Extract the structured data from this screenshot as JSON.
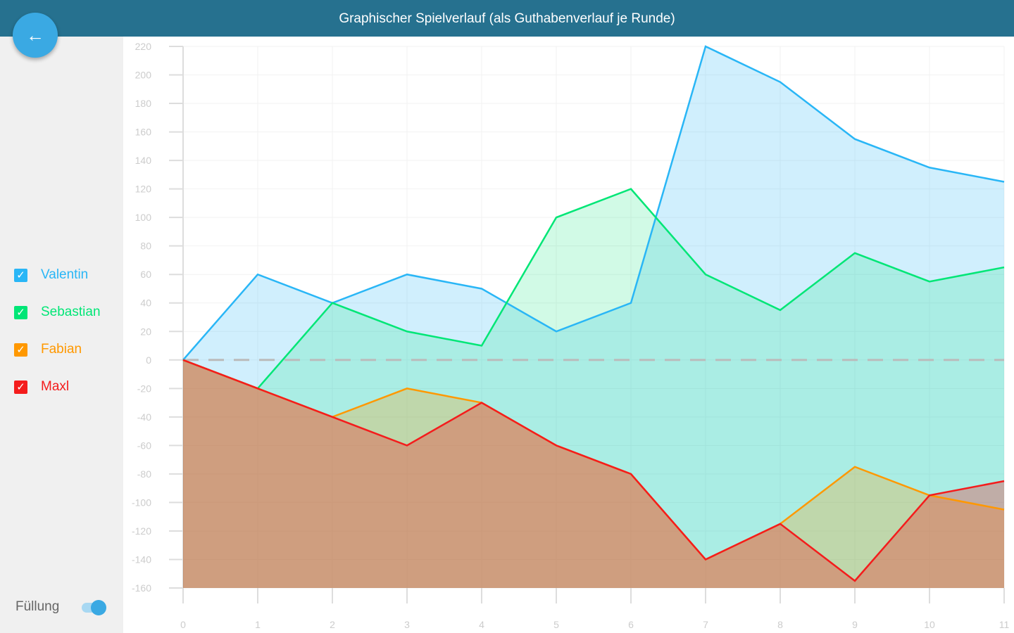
{
  "header": {
    "title": "Graphischer Spielverlauf (als Guthabenverlauf je Runde)",
    "back_icon": "arrow-left-icon"
  },
  "sidebar": {
    "fill_label": "Füllung",
    "fill_enabled": true
  },
  "chart_data": {
    "type": "area",
    "title": "Graphischer Spielverlauf (als Guthabenverlauf je Runde)",
    "x": [
      0,
      1,
      2,
      3,
      4,
      5,
      6,
      7,
      8,
      9,
      10,
      11
    ],
    "xlim": [
      0,
      11
    ],
    "ylim": [
      -160,
      220
    ],
    "yticks": [
      220,
      200,
      180,
      160,
      140,
      120,
      100,
      80,
      60,
      40,
      20,
      0,
      -20,
      -40,
      -60,
      -80,
      -100,
      -120,
      -140,
      -160
    ],
    "grid": true,
    "baseline_dashed": 0,
    "legend_placement": "left",
    "series": [
      {
        "name": "Valentin",
        "color": "#29b6f6",
        "checked": true,
        "values": [
          0,
          60,
          40,
          60,
          50,
          20,
          40,
          220,
          195,
          155,
          135,
          125
        ]
      },
      {
        "name": "Sebastian",
        "color": "#00e676",
        "checked": true,
        "values": [
          0,
          -20,
          40,
          20,
          10,
          100,
          120,
          60,
          35,
          75,
          55,
          65
        ]
      },
      {
        "name": "Fabian",
        "color": "#ff9800",
        "checked": true,
        "values": [
          0,
          -20,
          -40,
          -20,
          -30,
          -60,
          -80,
          -140,
          -115,
          -75,
          -95,
          -105
        ]
      },
      {
        "name": "Maxl",
        "color": "#f41c1c",
        "checked": true,
        "values": [
          0,
          -20,
          -40,
          -60,
          -30,
          -60,
          -80,
          -140,
          -115,
          -155,
          -95,
          -85
        ]
      }
    ]
  }
}
